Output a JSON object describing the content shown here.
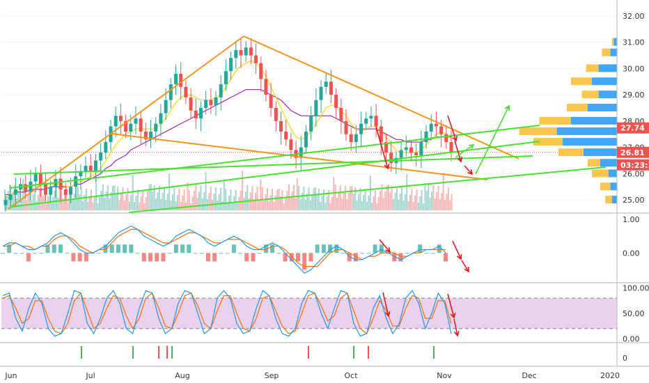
{
  "chart_data": {
    "type": "line",
    "symbol_note": "",
    "colors": {
      "price_up": "#26a69a",
      "price_down": "#ef5350",
      "ma_fast": "#f5d90a",
      "ma_slow": "#9c27b0",
      "trend_orange": "#f7931a",
      "channel_green": "#46e02d",
      "arrow_red": "#e8141f",
      "arrow_green": "#46e02d",
      "macd_line": "#2196f3",
      "signal_line": "#ff6d00",
      "stoch_band": "#e1bee7",
      "current_price": "#ef5350",
      "volume_profile_up": "#42a5f5",
      "volume_profile_down": "#f9c74f"
    },
    "x_axis": {
      "labels": [
        "Jun",
        "Jul",
        "Aug",
        "Sep",
        "Oct",
        "Nov",
        "Dec",
        "2020"
      ]
    },
    "price_panel": {
      "ylim": [
        24.5,
        32.5
      ],
      "ticks": [
        "32.00",
        "31.00",
        "30.00",
        "29.00",
        "28.00",
        "27.00",
        "26.00",
        "25.00"
      ],
      "current_price": "27.74",
      "last_price": "26.81",
      "countdown": "03:23:13",
      "close_series": [
        25.0,
        25.2,
        25.4,
        25.6,
        25.3,
        25.7,
        26.0,
        25.6,
        25.2,
        25.5,
        25.8,
        25.4,
        25.2,
        25.5,
        25.9,
        26.1,
        26.3,
        26.1,
        26.5,
        26.8,
        27.2,
        27.8,
        28.2,
        28.0,
        27.6,
        27.9,
        28.1,
        27.6,
        27.3,
        27.6,
        27.9,
        28.3,
        28.8,
        29.4,
        29.8,
        29.3,
        28.9,
        28.4,
        28.1,
        28.5,
        28.8,
        28.6,
        28.9,
        29.4,
        29.9,
        30.4,
        30.7,
        30.5,
        30.8,
        30.5,
        30.2,
        29.6,
        29.0,
        28.5,
        28.0,
        27.6,
        27.3,
        26.9,
        26.6,
        27.0,
        27.6,
        28.2,
        28.8,
        29.3,
        29.5,
        29.0,
        28.5,
        28.0,
        27.5,
        27.2,
        27.5,
        27.9,
        28.1,
        28.2,
        27.8,
        27.2,
        26.8,
        26.4,
        26.6,
        26.9,
        27.0,
        26.8,
        26.7,
        27.2,
        27.6,
        27.9,
        27.8,
        27.5,
        27.2,
        26.8
      ],
      "ma_fast_series": [
        25.1,
        25.2,
        25.3,
        25.4,
        25.5,
        25.5,
        25.6,
        25.6,
        25.6,
        25.6,
        25.6,
        25.6,
        25.5,
        25.5,
        25.6,
        25.7,
        25.8,
        25.9,
        26.0,
        26.2,
        26.5,
        26.8,
        27.1,
        27.3,
        27.5,
        27.6,
        27.7,
        27.7,
        27.7,
        27.7,
        27.7,
        27.9,
        28.1,
        28.4,
        28.7,
        28.9,
        29.0,
        29.0,
        28.9,
        28.8,
        28.8,
        28.8,
        28.9,
        29.0,
        29.3,
        29.6,
        29.9,
        30.1,
        30.2,
        30.3,
        30.2,
        30.0,
        29.7,
        29.3,
        28.9,
        28.5,
        28.1,
        27.7,
        27.4,
        27.3,
        27.4,
        27.6,
        27.9,
        28.2,
        28.5,
        28.6,
        28.6,
        28.4,
        28.2,
        27.9,
        27.7,
        27.6,
        27.7,
        27.8,
        27.8,
        27.6,
        27.4,
        27.1,
        26.9,
        26.8,
        26.8,
        26.8,
        26.8,
        26.9,
        27.1,
        27.3,
        27.5,
        27.6,
        27.5,
        27.3
      ],
      "ma_slow_series": [
        25.2,
        25.2,
        25.3,
        25.3,
        25.3,
        25.4,
        25.4,
        25.4,
        25.4,
        25.5,
        25.5,
        25.5,
        25.5,
        25.5,
        25.6,
        25.6,
        25.7,
        25.8,
        25.9,
        26.0,
        26.2,
        26.3,
        26.5,
        26.6,
        26.7,
        26.9,
        27.0,
        27.1,
        27.2,
        27.3,
        27.4,
        27.5,
        27.6,
        27.7,
        27.8,
        27.9,
        28.0,
        28.1,
        28.2,
        28.3,
        28.4,
        28.5,
        28.6,
        28.7,
        28.8,
        28.9,
        29.0,
        29.1,
        29.2,
        29.2,
        29.2,
        29.2,
        29.1,
        29.0,
        28.9,
        28.8,
        28.6,
        28.4,
        28.3,
        28.2,
        28.2,
        28.2,
        28.2,
        28.2,
        28.2,
        28.2,
        28.1,
        28.0,
        27.9,
        27.8,
        27.7,
        27.7,
        27.7,
        27.7,
        27.7,
        27.6,
        27.5,
        27.4,
        27.3,
        27.3,
        27.2,
        27.2,
        27.2,
        27.2,
        27.3,
        27.3,
        27.4,
        27.4,
        27.4,
        27.4
      ],
      "volume_profile": [
        {
          "price": 31.0,
          "up": 0.04,
          "down": 0.02
        },
        {
          "price": 30.6,
          "up": 0.08,
          "down": 0.1
        },
        {
          "price": 30.0,
          "up": 0.22,
          "down": 0.15
        },
        {
          "price": 29.5,
          "up": 0.3,
          "down": 0.25
        },
        {
          "price": 29.0,
          "up": 0.22,
          "down": 0.2
        },
        {
          "price": 28.5,
          "up": 0.35,
          "down": 0.25
        },
        {
          "price": 28.0,
          "up": 0.55,
          "down": 0.38
        },
        {
          "price": 27.6,
          "up": 0.72,
          "down": 0.45
        },
        {
          "price": 27.2,
          "up": 0.65,
          "down": 0.35
        },
        {
          "price": 26.8,
          "up": 0.4,
          "down": 0.3
        },
        {
          "price": 26.4,
          "up": 0.2,
          "down": 0.15
        },
        {
          "price": 26.0,
          "up": 0.1,
          "down": 0.2
        },
        {
          "price": 25.5,
          "up": 0.08,
          "down": 0.12
        },
        {
          "price": 25.0,
          "up": 0.06,
          "down": 0.08
        }
      ]
    },
    "macd_panel": {
      "ticks": [
        "1.00",
        "0.00"
      ],
      "ylim": [
        -0.8,
        1.1
      ],
      "macd_series": [
        0.2,
        0.3,
        0.3,
        0.2,
        0.1,
        0.1,
        0.2,
        0.3,
        0.5,
        0.6,
        0.5,
        0.3,
        0.1,
        0.0,
        0.0,
        0.1,
        0.2,
        0.4,
        0.6,
        0.7,
        0.8,
        0.7,
        0.5,
        0.4,
        0.3,
        0.2,
        0.3,
        0.5,
        0.6,
        0.7,
        0.6,
        0.5,
        0.3,
        0.2,
        0.3,
        0.4,
        0.5,
        0.4,
        0.2,
        0.1,
        0.1,
        0.2,
        0.3,
        0.2,
        0.0,
        -0.2,
        -0.4,
        -0.6,
        -0.5,
        -0.3,
        -0.1,
        0.1,
        0.2,
        0.1,
        -0.1,
        -0.2,
        -0.2,
        -0.1,
        0.0,
        0.1,
        0.0,
        -0.1,
        -0.2,
        -0.1,
        0.0,
        0.1,
        0.1,
        0.1,
        0.2,
        0.0
      ],
      "signal_series": [
        0.2,
        0.2,
        0.3,
        0.2,
        0.2,
        0.1,
        0.2,
        0.2,
        0.4,
        0.5,
        0.5,
        0.4,
        0.2,
        0.1,
        0.0,
        0.1,
        0.1,
        0.3,
        0.5,
        0.6,
        0.7,
        0.7,
        0.6,
        0.5,
        0.4,
        0.3,
        0.3,
        0.4,
        0.5,
        0.6,
        0.6,
        0.5,
        0.4,
        0.3,
        0.3,
        0.4,
        0.4,
        0.4,
        0.3,
        0.2,
        0.1,
        0.1,
        0.2,
        0.2,
        0.1,
        -0.1,
        -0.3,
        -0.4,
        -0.4,
        -0.4,
        -0.2,
        0.0,
        0.1,
        0.1,
        0.0,
        -0.1,
        -0.2,
        -0.1,
        -0.1,
        0.0,
        0.0,
        0.0,
        -0.1,
        -0.1,
        0.0,
        0.0,
        0.1,
        0.1,
        0.1,
        0.1
      ]
    },
    "stoch_panel": {
      "ticks": [
        "100.00",
        "50.00",
        "0.00"
      ],
      "ylim": [
        -5,
        105
      ],
      "band": [
        20,
        80
      ],
      "k_series": [
        85,
        90,
        40,
        15,
        60,
        90,
        70,
        20,
        5,
        10,
        50,
        95,
        90,
        30,
        10,
        40,
        80,
        95,
        70,
        20,
        10,
        60,
        95,
        90,
        40,
        10,
        20,
        70,
        95,
        90,
        50,
        10,
        20,
        80,
        95,
        80,
        30,
        10,
        15,
        60,
        95,
        85,
        40,
        10,
        5,
        20,
        70,
        95,
        90,
        50,
        20,
        60,
        95,
        90,
        30,
        5,
        10,
        60,
        85,
        40,
        10,
        30,
        80,
        95,
        70,
        20,
        50,
        90,
        70,
        10
      ],
      "d_series": [
        80,
        85,
        60,
        30,
        40,
        75,
        75,
        40,
        15,
        10,
        30,
        75,
        90,
        55,
        20,
        30,
        60,
        85,
        80,
        45,
        20,
        40,
        80,
        90,
        60,
        25,
        20,
        50,
        85,
        90,
        65,
        30,
        20,
        55,
        85,
        85,
        50,
        20,
        15,
        40,
        80,
        85,
        55,
        25,
        10,
        15,
        50,
        85,
        90,
        65,
        35,
        45,
        80,
        90,
        55,
        20,
        10,
        40,
        75,
        55,
        25,
        25,
        60,
        85,
        80,
        40,
        40,
        75,
        75,
        30
      ]
    },
    "event_ticks_panel": {
      "ticks": [
        "0"
      ]
    }
  }
}
